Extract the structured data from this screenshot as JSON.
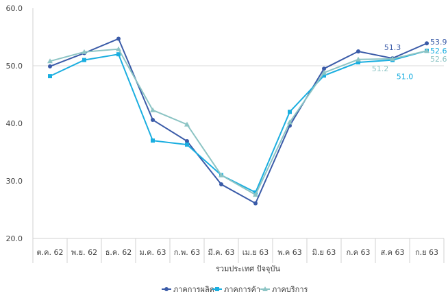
{
  "chart_data": {
    "type": "line",
    "categories": [
      "ต.ค. 62",
      "พ.ย. 62",
      "ธ.ค. 62",
      "ม.ค. 63",
      "ก.พ. 63",
      "มี.ค. 63",
      "เม.ย 63",
      "พ.ค 63",
      "มิ.ย 63",
      "ก.ค 63",
      "ส.ค 63",
      "ก.ย 63"
    ],
    "xlabel": "รวมประเทศ ปัจจุบัน",
    "ylabel": "",
    "ylim": [
      20,
      60
    ],
    "yticks": [
      "20.0",
      "30.0",
      "40.0",
      "50.0",
      "60.0"
    ],
    "reference_line": 50,
    "legend_position": "bottom",
    "series": [
      {
        "name": "ภาคการผลิต",
        "color": "#3a5ba8",
        "marker": "circle",
        "values": [
          49.9,
          52.2,
          54.7,
          40.6,
          36.9,
          29.4,
          26.1,
          39.6,
          49.5,
          52.5,
          51.3,
          53.9
        ]
      },
      {
        "name": "ภาคการค้า",
        "color": "#1aaee0",
        "marker": "square",
        "values": [
          48.2,
          51.0,
          52.0,
          37.0,
          36.3,
          31.0,
          28.0,
          42.0,
          48.3,
          50.6,
          51.0,
          52.6
        ]
      },
      {
        "name": "ภาคบริการ",
        "color": "#8cc4c4",
        "marker": "triangle",
        "values": [
          50.8,
          52.4,
          52.9,
          42.3,
          39.8,
          31.0,
          27.6,
          40.2,
          48.8,
          51.1,
          51.2,
          52.6
        ]
      }
    ],
    "data_labels": [
      {
        "series": 0,
        "index": 10,
        "text": "51.3"
      },
      {
        "series": 0,
        "index": 11,
        "text": "53.9"
      },
      {
        "series": 1,
        "index": 10,
        "text": "51.0"
      },
      {
        "series": 1,
        "index": 11,
        "text": "52.6"
      },
      {
        "series": 2,
        "index": 10,
        "text": "51.2"
      },
      {
        "series": 2,
        "index": 11,
        "text": "52.6"
      }
    ]
  }
}
